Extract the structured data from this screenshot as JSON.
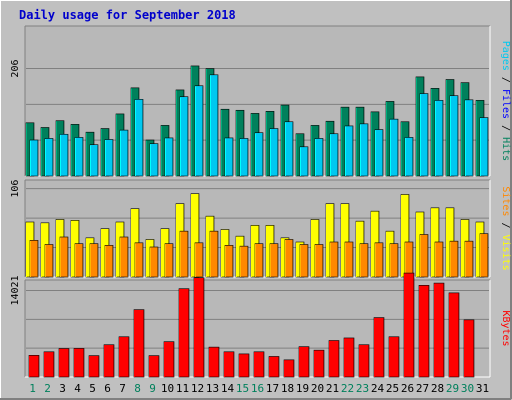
{
  "chart_data": {
    "type": "bar",
    "title": "Daily usage for September 2018",
    "categories": [
      "1",
      "2",
      "3",
      "4",
      "5",
      "6",
      "7",
      "8",
      "9",
      "10",
      "11",
      "12",
      "13",
      "14",
      "15",
      "16",
      "17",
      "18",
      "19",
      "20",
      "21",
      "22",
      "23",
      "24",
      "25",
      "26",
      "27",
      "28",
      "29",
      "30",
      "31"
    ],
    "weekend_days": [
      "1",
      "2",
      "8",
      "9",
      "15",
      "16",
      "22",
      "23",
      "29",
      "30"
    ],
    "colors": {
      "background": "#c0c0c0",
      "plot_bg": "#b8b8b8",
      "title": "#0000cc",
      "hits": "#00805c",
      "files": "#00c8f0",
      "visits": "#ffff00",
      "sites": "#ff8800",
      "kbytes": "#ff0000",
      "pages": "#00c8f0",
      "weekday_label": "#000000",
      "weekend_label": "#00805c"
    },
    "panels": [
      {
        "ylabel_tick": "206",
        "ymax": 206,
        "legend": [
          {
            "text": "Pages",
            "color": "#00c8f0"
          },
          {
            "text": " / ",
            "color": "#000000"
          },
          {
            "text": "Files",
            "color": "#0000ff"
          },
          {
            "text": " / ",
            "color": "#000000"
          },
          {
            "text": "Hits",
            "color": "#00805c"
          }
        ],
        "series": [
          {
            "key": "hits",
            "values": [
              102,
              93,
              106,
              99,
              84,
              91,
              119,
              169,
              69,
              97,
              165,
              211,
              206,
              128,
              126,
              120,
              124,
              136,
              81,
              97,
              105,
              132,
              132,
              123,
              143,
              104,
              190,
              168,
              185,
              179,
              145
            ]
          },
          {
            "key": "files",
            "values": [
              69,
              72,
              80,
              74,
              60,
              70,
              88,
              147,
              62,
              73,
              152,
              173,
              194,
              73,
              72,
              83,
              91,
              104,
              56,
              72,
              81,
              96,
              100,
              89,
              109,
              74,
              158,
              145,
              154,
              146,
              112
            ]
          }
        ]
      },
      {
        "ylabel_tick": "106",
        "ymax": 106,
        "legend": [
          {
            "text": "Sites",
            "color": "#ff8800"
          },
          {
            "text": " / ",
            "color": "#000000"
          },
          {
            "text": "Visits",
            "color": "#ffff00"
          }
        ],
        "series": [
          {
            "key": "visits",
            "values": [
              66,
              65,
              69,
              68,
              47,
              58,
              66,
              82,
              45,
              58,
              88,
              100,
              73,
              57,
              49,
              62,
              62,
              47,
              42,
              69,
              88,
              88,
              67,
              79,
              55,
              99,
              78,
              83,
              83,
              69,
              66
            ]
          },
          {
            "key": "sites",
            "values": [
              44,
              39,
              48,
              40,
              40,
              38,
              48,
              41,
              36,
              40,
              55,
              41,
              55,
              38,
              37,
              40,
              40,
              45,
              39,
              39,
              42,
              42,
              40,
              41,
              40,
              42,
              51,
              42,
              43,
              43,
              52
            ]
          }
        ]
      },
      {
        "ylabel_tick": "14021",
        "ymax": 14021,
        "legend": [
          {
            "text": "KBytes",
            "color": "#ff0000"
          }
        ],
        "series": [
          {
            "key": "kbytes",
            "values": [
              3516,
              4086,
              4617,
              4636,
              3465,
              5232,
              6524,
              10922,
              3465,
              5727,
              14315,
              16093,
              4844,
              4086,
              3744,
              4086,
              3328,
              2781,
              4919,
              4350,
              5915,
              6330,
              5232,
              9634,
              6524,
              16849,
              14863,
              15225,
              13638,
              9265,
              0
            ]
          }
        ]
      }
    ]
  }
}
